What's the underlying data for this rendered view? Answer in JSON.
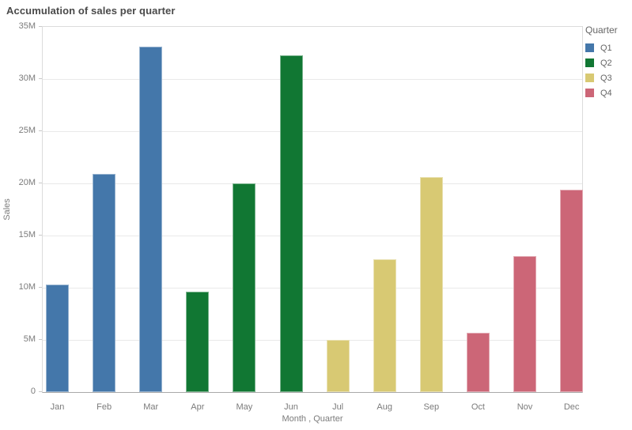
{
  "chart_data": {
    "type": "bar",
    "title": "Accumulation of sales per quarter",
    "xlabel": "Month , Quarter",
    "ylabel": "Sales",
    "ylim": [
      0,
      35
    ],
    "grid": true,
    "legend_position": "right",
    "unit": "millions",
    "categories": [
      "Jan",
      "Feb",
      "Mar",
      "Apr",
      "May",
      "Jun",
      "Jul",
      "Aug",
      "Sep",
      "Oct",
      "Nov",
      "Dec"
    ],
    "yticks": [
      {
        "label": "0",
        "value": 0
      },
      {
        "label": "5M",
        "value": 5
      },
      {
        "label": "10M",
        "value": 10
      },
      {
        "label": "15M",
        "value": 15
      },
      {
        "label": "20M",
        "value": 20
      },
      {
        "label": "25M",
        "value": 25
      },
      {
        "label": "30M",
        "value": 30
      },
      {
        "label": "35M",
        "value": 35
      }
    ],
    "series": [
      {
        "name": "Q1",
        "color": "#4477aa",
        "categories": [
          "Jan",
          "Feb",
          "Mar"
        ],
        "values": [
          10.3,
          20.9,
          33.1
        ]
      },
      {
        "name": "Q2",
        "color": "#117733",
        "categories": [
          "Apr",
          "May",
          "Jun"
        ],
        "values": [
          9.6,
          20.0,
          32.3
        ]
      },
      {
        "name": "Q3",
        "color": "#d8c973",
        "categories": [
          "Jul",
          "Aug",
          "Sep"
        ],
        "values": [
          5.0,
          12.7,
          20.6
        ]
      },
      {
        "name": "Q4",
        "color": "#cc6677",
        "categories": [
          "Oct",
          "Nov",
          "Dec"
        ],
        "values": [
          5.7,
          13.0,
          19.4
        ]
      }
    ],
    "legend": {
      "title": "Quarter",
      "items": [
        {
          "label": "Q1",
          "color": "#4477aa"
        },
        {
          "label": "Q2",
          "color": "#117733"
        },
        {
          "label": "Q3",
          "color": "#d8c973"
        },
        {
          "label": "Q4",
          "color": "#cc6677"
        }
      ]
    }
  }
}
